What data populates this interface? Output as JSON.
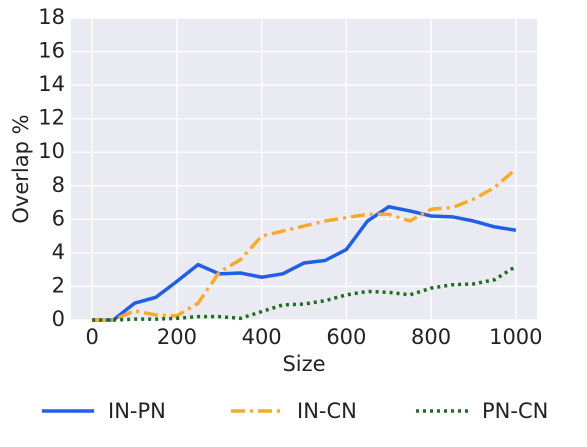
{
  "chart_data": {
    "type": "line",
    "xlabel": "Size",
    "ylabel": "Overlap %",
    "x": [
      0,
      50,
      100,
      150,
      200,
      250,
      300,
      350,
      400,
      450,
      500,
      550,
      600,
      650,
      700,
      750,
      800,
      850,
      900,
      950,
      1000
    ],
    "series": [
      {
        "name": "IN-PN",
        "color": "#1f5fe8",
        "style": "solid",
        "values": [
          0,
          0,
          1.0,
          1.35,
          2.3,
          3.3,
          2.75,
          2.8,
          2.55,
          2.75,
          3.4,
          3.55,
          4.2,
          5.9,
          6.75,
          6.5,
          6.2,
          6.15,
          5.9,
          5.55,
          5.35
        ]
      },
      {
        "name": "IN-CN",
        "color": "#fbaa28",
        "style": "dashdot",
        "values": [
          0,
          0,
          0.55,
          0.3,
          0.25,
          1.0,
          2.85,
          3.6,
          5.0,
          5.3,
          5.6,
          5.9,
          6.1,
          6.3,
          6.3,
          5.9,
          6.6,
          6.7,
          7.2,
          7.9,
          9.0
        ]
      },
      {
        "name": "PN-CN",
        "color": "#1d6d1d",
        "style": "dotted",
        "values": [
          0,
          0,
          0.05,
          0.05,
          0.1,
          0.2,
          0.2,
          0.1,
          0.5,
          0.9,
          0.95,
          1.15,
          1.5,
          1.7,
          1.65,
          1.5,
          1.9,
          2.1,
          2.15,
          2.4,
          3.2
        ]
      }
    ],
    "xlim": [
      -50,
      1050
    ],
    "xticks": [
      0,
      200,
      400,
      600,
      800,
      1000
    ],
    "ylim": [
      0,
      18
    ],
    "yticks": [
      0,
      2,
      4,
      6,
      8,
      10,
      12,
      14,
      16,
      18
    ],
    "grid": true,
    "legend": "bottom"
  }
}
